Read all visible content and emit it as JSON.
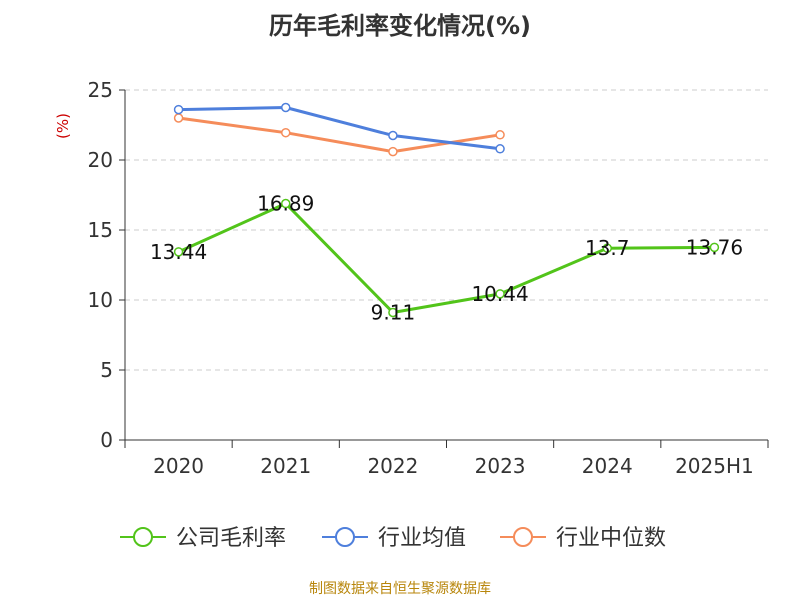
{
  "chart_data": {
    "type": "line",
    "title": "历年毛利率变化情况(%)",
    "ylabel": "(%)",
    "xlabel": "",
    "categories": [
      "2020",
      "2021",
      "2022",
      "2023",
      "2024",
      "2025H1"
    ],
    "ylim": [
      0,
      25
    ],
    "yticks": [
      0,
      5,
      10,
      15,
      20,
      25
    ],
    "grid": true,
    "legend_position": "bottom",
    "series": [
      {
        "name": "公司毛利率",
        "color": "#52c41a",
        "values": [
          13.44,
          16.89,
          9.11,
          10.44,
          13.7,
          13.76
        ],
        "labels": [
          "13.44",
          "16.89",
          "9.11",
          "10.44",
          "13.7",
          "13.76"
        ]
      },
      {
        "name": "行业均值",
        "color": "#4e7fdc",
        "values": [
          23.6,
          23.75,
          21.75,
          20.8,
          null,
          null
        ]
      },
      {
        "name": "行业中位数",
        "color": "#f58c5a",
        "values": [
          23.0,
          21.95,
          20.6,
          21.8,
          null,
          null
        ]
      }
    ]
  },
  "source_text": "制图数据来自恒生聚源数据库"
}
